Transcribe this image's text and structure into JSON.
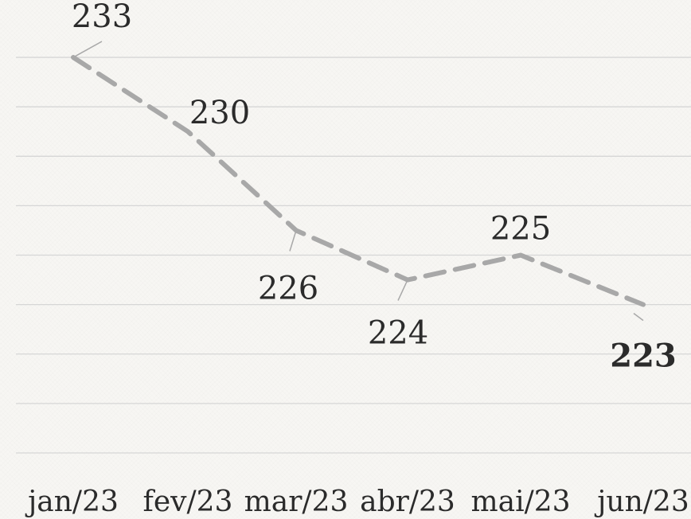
{
  "chart_data": {
    "type": "line",
    "categories": [
      "jan/23",
      "fev/23",
      "mar/23",
      "abr/23",
      "mai/23",
      "jun/23"
    ],
    "values": [
      233,
      230,
      226,
      224,
      225,
      223
    ],
    "data_labels": [
      "233",
      "230",
      "226",
      "224",
      "225",
      "223"
    ],
    "title": "",
    "xlabel": "",
    "ylabel": "",
    "ylim": [
      217,
      234
    ],
    "grid": true,
    "legend": "none",
    "line_style": "dashed",
    "colors": {
      "line": "#a8a8a8",
      "grid": "#d6d6d6",
      "text": "#2b2b2b",
      "background": "#f7f6f3"
    }
  }
}
